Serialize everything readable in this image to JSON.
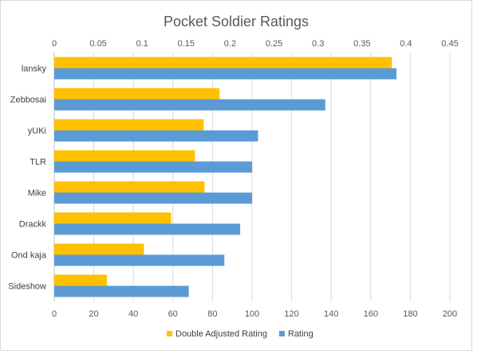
{
  "chart_data": {
    "type": "bar",
    "orientation": "horizontal",
    "title": "Pocket Soldier Ratings",
    "categories": [
      "lansky",
      "Zebbosai",
      "yUKi",
      "TLR",
      "Mike",
      "Drackk",
      "Ond kaja",
      "Sideshow"
    ],
    "series": [
      {
        "name": "Double Adjusted Rating",
        "axis": "top",
        "color": "#FFC000",
        "values": [
          0.384,
          0.188,
          0.17,
          0.16,
          0.171,
          0.133,
          0.102,
          0.06
        ]
      },
      {
        "name": "Rating",
        "axis": "bottom",
        "color": "#5B9BD5",
        "values": [
          173,
          137,
          103,
          100,
          100,
          94,
          86,
          68
        ]
      }
    ],
    "top_axis": {
      "range": [
        0,
        0.45
      ],
      "ticks": [
        "0",
        "0.05",
        "0.1",
        "0.15",
        "0.2",
        "0.25",
        "0.3",
        "0.35",
        "0.4",
        "0.45"
      ]
    },
    "bottom_axis": {
      "range": [
        0,
        200
      ],
      "ticks": [
        "0",
        "20",
        "40",
        "60",
        "80",
        "100",
        "120",
        "140",
        "160",
        "180",
        "200"
      ]
    },
    "grid": true,
    "legend_position": "bottom"
  }
}
